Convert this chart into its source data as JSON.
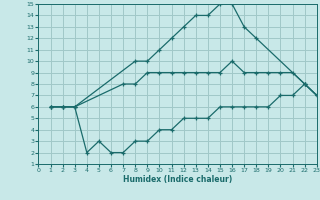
{
  "xlabel": "Humidex (Indice chaleur)",
  "bg_color": "#c8e8e8",
  "grid_color": "#a0c8c8",
  "line_color": "#1a6b6b",
  "xlim": [
    0,
    23
  ],
  "ylim": [
    1,
    15
  ],
  "xticks": [
    0,
    1,
    2,
    3,
    4,
    5,
    6,
    7,
    8,
    9,
    10,
    11,
    12,
    13,
    14,
    15,
    16,
    17,
    18,
    19,
    20,
    21,
    22,
    23
  ],
  "yticks": [
    1,
    2,
    3,
    4,
    5,
    6,
    7,
    8,
    9,
    10,
    11,
    12,
    13,
    14,
    15
  ],
  "line1_x": [
    1,
    2,
    3,
    8,
    9,
    10,
    11,
    12,
    13,
    14,
    15,
    16,
    17,
    18,
    22,
    23
  ],
  "line1_y": [
    6,
    6,
    6,
    10,
    10,
    11,
    12,
    13,
    14,
    14,
    15,
    15,
    13,
    12,
    8,
    7
  ],
  "line2_x": [
    1,
    2,
    3,
    7,
    8,
    9,
    10,
    11,
    12,
    13,
    14,
    15,
    16,
    17,
    18,
    19,
    20,
    21,
    22,
    23
  ],
  "line2_y": [
    6,
    6,
    6,
    8,
    8,
    9,
    9,
    9,
    9,
    9,
    9,
    9,
    10,
    9,
    9,
    9,
    9,
    9,
    8,
    7
  ],
  "line3_x": [
    1,
    2,
    3,
    4,
    5,
    6,
    7,
    8,
    9,
    10,
    11,
    12,
    13,
    14,
    15,
    16,
    17,
    18,
    19,
    20,
    21,
    22,
    23
  ],
  "line3_y": [
    6,
    6,
    6,
    2,
    3,
    2,
    2,
    3,
    3,
    4,
    4,
    5,
    5,
    5,
    6,
    6,
    6,
    6,
    6,
    7,
    7,
    8,
    7
  ]
}
